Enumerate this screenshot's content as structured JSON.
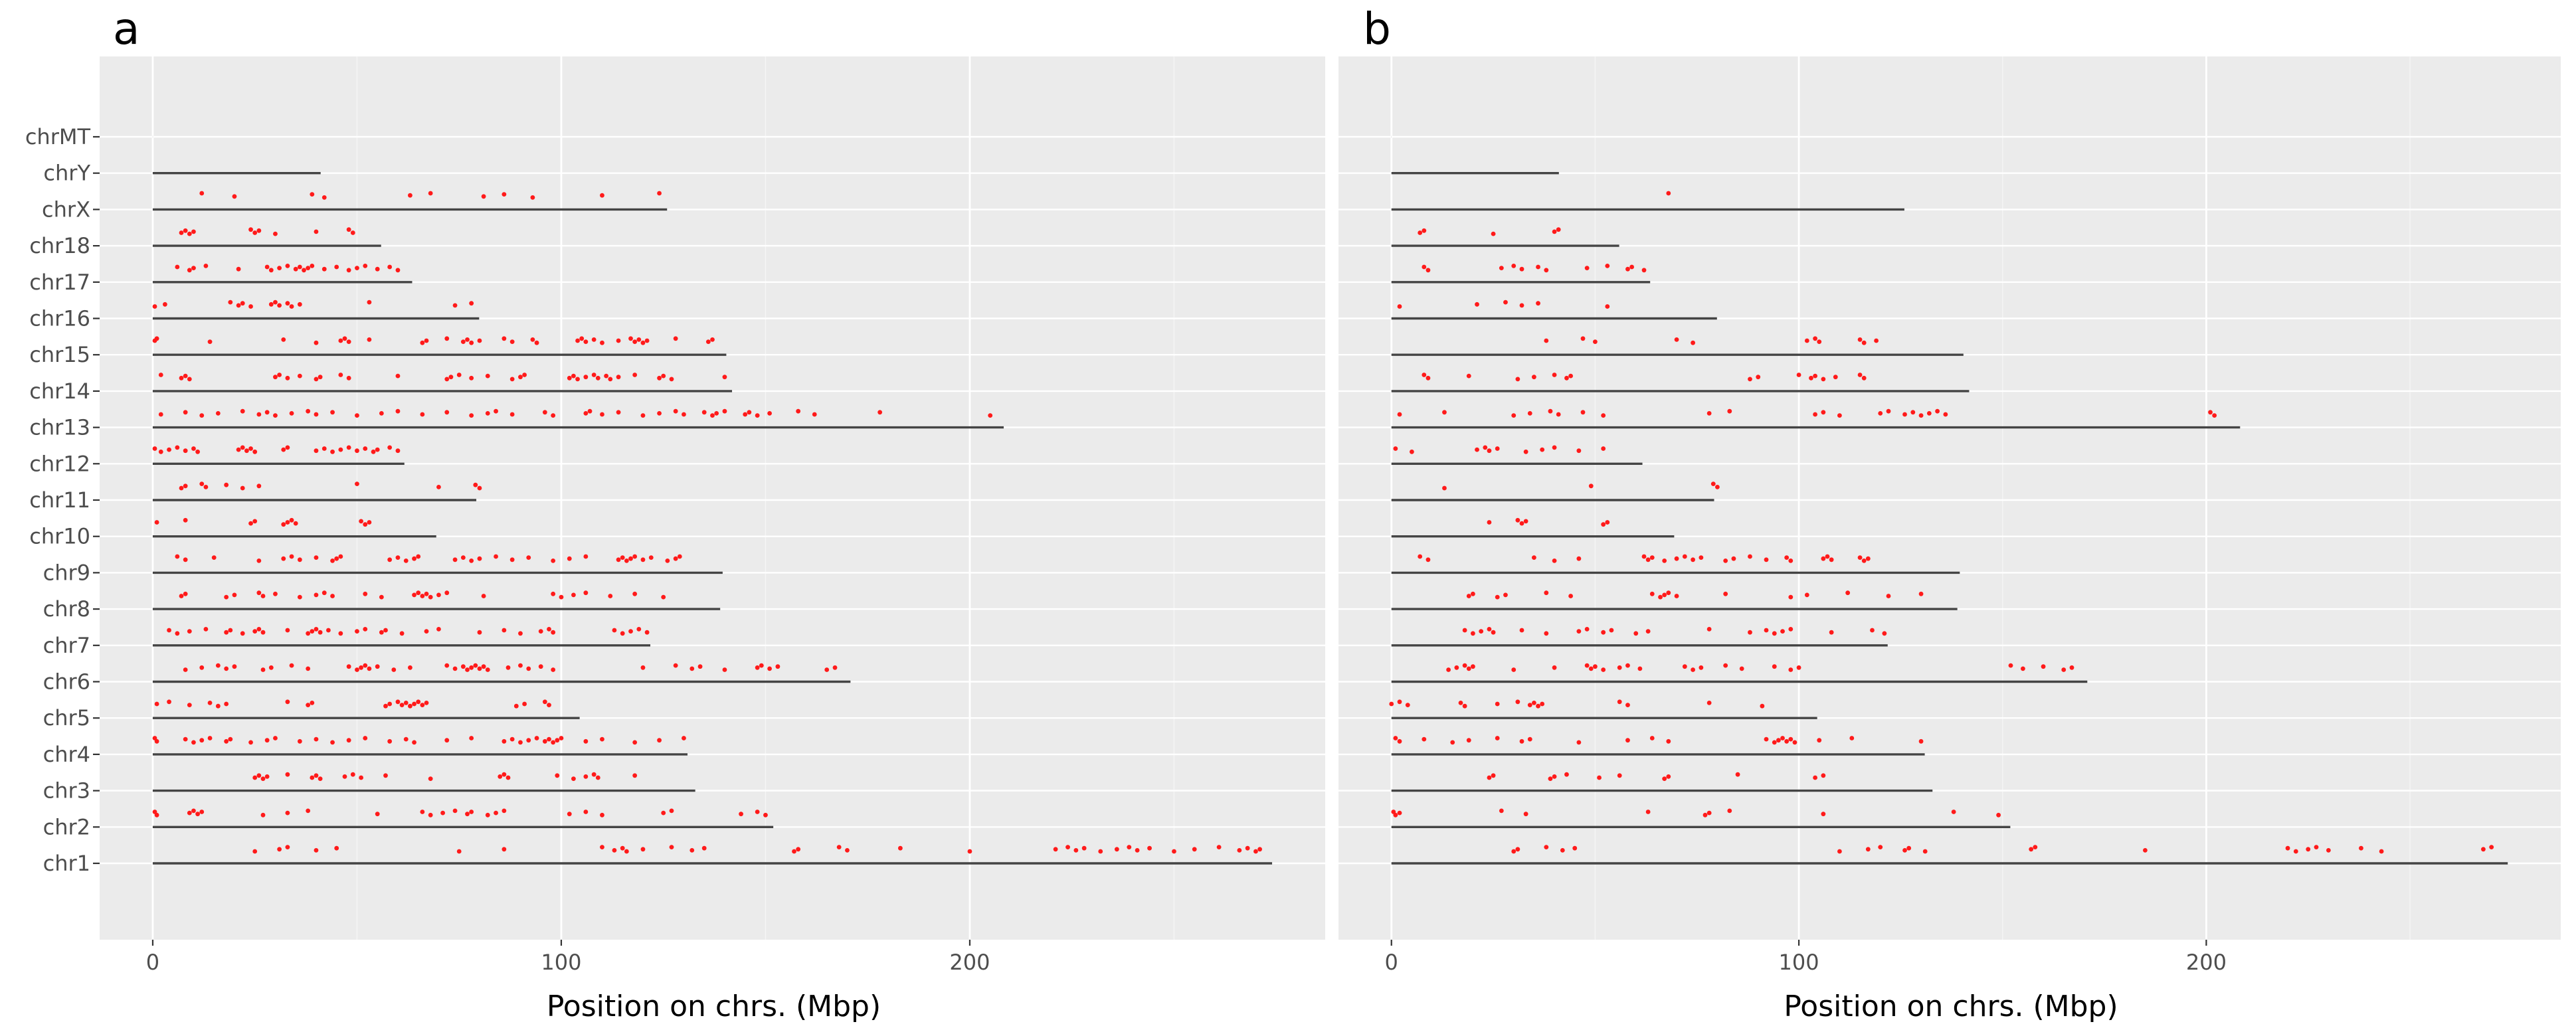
{
  "chart_data": [
    {
      "type": "scatter",
      "panel_label": "a",
      "xlabel": "Position on chrs. (Mbp)",
      "xlim": [
        -13,
        287
      ],
      "xticks": [
        0,
        100,
        200
      ],
      "xtick_labels": [
        "0",
        "100",
        "200"
      ],
      "categories": [
        "chr1",
        "chr2",
        "chr3",
        "chr4",
        "chr5",
        "chr6",
        "chr7",
        "chr8",
        "chr9",
        "chr10",
        "chr11",
        "chr12",
        "chr13",
        "chr14",
        "chr15",
        "chr16",
        "chr17",
        "chr18",
        "chrX",
        "chrY",
        "chrMT"
      ],
      "chromosome_lengths": [
        274,
        151.9,
        132.8,
        130.9,
        104.5,
        170.8,
        121.8,
        138.9,
        139.5,
        69.4,
        79.2,
        61.6,
        208.3,
        141.8,
        140.4,
        79.9,
        63.5,
        55.9,
        125.9,
        41.1,
        0.016
      ],
      "series": [
        {
          "name": "chr1",
          "positions": [
            25,
            31,
            33,
            40,
            45,
            75,
            86,
            110,
            113,
            115,
            116,
            120,
            127,
            132,
            135,
            157,
            158,
            168,
            170,
            183,
            200,
            221,
            224,
            226,
            228,
            232,
            236,
            239,
            241,
            244,
            250,
            255,
            261,
            266,
            268,
            270,
            271
          ]
        },
        {
          "name": "chr2",
          "positions": [
            0.5,
            1,
            9,
            10,
            11,
            12,
            27,
            33,
            38,
            55,
            66,
            68,
            71,
            74,
            77,
            78,
            82,
            84,
            86,
            102,
            106,
            110,
            125,
            127,
            144,
            148,
            150
          ]
        },
        {
          "name": "chr3",
          "positions": [
            25,
            26,
            27,
            28,
            33,
            39,
            40,
            41,
            47,
            49,
            51,
            57,
            68,
            85,
            86,
            87,
            99,
            103,
            106,
            108,
            109,
            118
          ]
        },
        {
          "name": "chr4",
          "positions": [
            0.5,
            1,
            8,
            10,
            12,
            14,
            18,
            19,
            24,
            28,
            30,
            36,
            40,
            44,
            48,
            52,
            58,
            62,
            64,
            72,
            78,
            86,
            88,
            90,
            92,
            94,
            96,
            97,
            98,
            99,
            100,
            106,
            110,
            118,
            124,
            130
          ]
        },
        {
          "name": "chr5",
          "positions": [
            1,
            4,
            9,
            14,
            16,
            18,
            33,
            38,
            39,
            57,
            58,
            60,
            61,
            62,
            63,
            64,
            65,
            66,
            67,
            89,
            91,
            96,
            97
          ]
        },
        {
          "name": "chr6",
          "positions": [
            8,
            12,
            16,
            18,
            20,
            27,
            29,
            34,
            38,
            48,
            50,
            51,
            52,
            53,
            55,
            59,
            63,
            72,
            74,
            76,
            77,
            78,
            79,
            80,
            81,
            82,
            87,
            90,
            92,
            95,
            98,
            120,
            128,
            132,
            134,
            140,
            148,
            149,
            151,
            153,
            165,
            167
          ]
        },
        {
          "name": "chr7",
          "positions": [
            4,
            6,
            9,
            13,
            18,
            19,
            22,
            25,
            26,
            27,
            33,
            38,
            39,
            40,
            41,
            43,
            46,
            50,
            52,
            56,
            57,
            61,
            67,
            70,
            80,
            86,
            90,
            95,
            97,
            98,
            113,
            115,
            117,
            119,
            121
          ]
        },
        {
          "name": "chr8",
          "positions": [
            7,
            8,
            18,
            20,
            26,
            27,
            30,
            36,
            40,
            42,
            44,
            52,
            56,
            64,
            65,
            66,
            67,
            68,
            70,
            72,
            81,
            98,
            100,
            103,
            106,
            112,
            118,
            125
          ]
        },
        {
          "name": "chr9",
          "positions": [
            6,
            8,
            15,
            26,
            32,
            34,
            36,
            40,
            44,
            45,
            46,
            58,
            60,
            62,
            64,
            65,
            74,
            76,
            78,
            80,
            84,
            88,
            92,
            98,
            102,
            106,
            114,
            115,
            116,
            117,
            118,
            120,
            122,
            126,
            128,
            129
          ]
        },
        {
          "name": "chr10",
          "positions": [
            1,
            8,
            24,
            25,
            32,
            33,
            34,
            35,
            51,
            52,
            53
          ]
        },
        {
          "name": "chr11",
          "positions": [
            7,
            8,
            12,
            13,
            18,
            22,
            26,
            50,
            70,
            79,
            80
          ]
        },
        {
          "name": "chr12",
          "positions": [
            0.5,
            2,
            4,
            6,
            8,
            10,
            11,
            21,
            22,
            23,
            24,
            25,
            32,
            33,
            40,
            42,
            44,
            46,
            48,
            50,
            52,
            54,
            55,
            58,
            60
          ]
        },
        {
          "name": "chr13",
          "positions": [
            2,
            8,
            12,
            16,
            22,
            26,
            28,
            30,
            34,
            38,
            40,
            44,
            50,
            56,
            60,
            66,
            72,
            78,
            82,
            84,
            88,
            96,
            98,
            106,
            107,
            110,
            114,
            120,
            124,
            128,
            130,
            135,
            137,
            138,
            140,
            145,
            146,
            148,
            151,
            158,
            162,
            178,
            205
          ]
        },
        {
          "name": "chr14",
          "positions": [
            2,
            7,
            8,
            9,
            30,
            31,
            33,
            36,
            40,
            41,
            46,
            48,
            60,
            72,
            73,
            75,
            78,
            82,
            88,
            90,
            91,
            102,
            103,
            104,
            106,
            108,
            109,
            111,
            112,
            114,
            118,
            124,
            125,
            127,
            140
          ]
        },
        {
          "name": "chr15",
          "positions": [
            0.5,
            1,
            14,
            32,
            40,
            46,
            47,
            48,
            53,
            66,
            67,
            72,
            76,
            77,
            78,
            80,
            86,
            88,
            93,
            94,
            104,
            105,
            106,
            108,
            110,
            114,
            117,
            118,
            119,
            120,
            121,
            128,
            136,
            137
          ]
        },
        {
          "name": "chr16",
          "positions": [
            0.5,
            3,
            19,
            21,
            22,
            24,
            29,
            30,
            31,
            33,
            34,
            36,
            53,
            74,
            78
          ]
        },
        {
          "name": "chr17",
          "positions": [
            6,
            9,
            10,
            13,
            21,
            28,
            29,
            31,
            33,
            35,
            36,
            37,
            38,
            39,
            42,
            45,
            48,
            50,
            52,
            55,
            58,
            60
          ]
        },
        {
          "name": "chr18",
          "positions": [
            7,
            8,
            9,
            10,
            24,
            25,
            26,
            30,
            40,
            48,
            49
          ]
        },
        {
          "name": "chrX",
          "positions": [
            12,
            20,
            39,
            42,
            63,
            68,
            81,
            86,
            93,
            110,
            124
          ]
        },
        {
          "name": "chrY",
          "positions": []
        },
        {
          "name": "chrMT",
          "positions": []
        }
      ]
    },
    {
      "type": "scatter",
      "panel_label": "b",
      "xlabel": "Position on chrs. (Mbp)",
      "xlim": [
        -13,
        287
      ],
      "xticks": [
        0,
        100,
        200
      ],
      "xtick_labels": [
        "0",
        "100",
        "200"
      ],
      "categories": [
        "chr1",
        "chr2",
        "chr3",
        "chr4",
        "chr5",
        "chr6",
        "chr7",
        "chr8",
        "chr9",
        "chr10",
        "chr11",
        "chr12",
        "chr13",
        "chr14",
        "chr15",
        "chr16",
        "chr17",
        "chr18",
        "chrX",
        "chrY",
        "chrMT"
      ],
      "chromosome_lengths": [
        274,
        151.9,
        132.8,
        130.9,
        104.5,
        170.8,
        121.8,
        138.9,
        139.5,
        69.4,
        79.2,
        61.6,
        208.3,
        141.8,
        140.4,
        79.9,
        63.5,
        55.9,
        125.9,
        41.1,
        0.016
      ],
      "series": [
        {
          "name": "chr1",
          "positions": [
            30,
            31,
            38,
            42,
            45,
            110,
            117,
            120,
            126,
            127,
            131,
            157,
            158,
            185,
            220,
            222,
            225,
            227,
            230,
            238,
            243,
            268,
            270
          ]
        },
        {
          "name": "chr2",
          "positions": [
            0.5,
            1,
            2,
            27,
            33,
            63,
            77,
            78,
            83,
            106,
            138,
            149
          ]
        },
        {
          "name": "chr3",
          "positions": [
            24,
            25,
            39,
            40,
            43,
            51,
            56,
            67,
            68,
            85,
            104,
            106
          ]
        },
        {
          "name": "chr4",
          "positions": [
            1,
            2,
            8,
            15,
            19,
            26,
            32,
            34,
            46,
            58,
            64,
            68,
            92,
            94,
            95,
            96,
            97,
            98,
            99,
            105,
            113,
            130
          ]
        },
        {
          "name": "chr5",
          "positions": [
            0,
            2,
            4,
            17,
            18,
            26,
            31,
            34,
            35,
            36,
            37,
            56,
            58,
            78,
            91
          ]
        },
        {
          "name": "chr6",
          "positions": [
            14,
            16,
            18,
            19,
            20,
            30,
            40,
            48,
            49,
            50,
            52,
            56,
            58,
            61,
            72,
            74,
            76,
            82,
            86,
            94,
            98,
            100,
            152,
            155,
            160,
            165,
            167
          ]
        },
        {
          "name": "chr7",
          "positions": [
            18,
            20,
            22,
            24,
            25,
            32,
            38,
            46,
            48,
            52,
            54,
            60,
            63,
            78,
            88,
            92,
            94,
            96,
            98,
            108,
            118,
            121
          ]
        },
        {
          "name": "chr8",
          "positions": [
            19,
            20,
            26,
            28,
            38,
            44,
            64,
            66,
            67,
            68,
            70,
            82,
            98,
            102,
            112,
            122,
            130
          ]
        },
        {
          "name": "chr9",
          "positions": [
            7,
            9,
            35,
            40,
            46,
            62,
            63,
            64,
            67,
            70,
            72,
            74,
            76,
            82,
            84,
            88,
            92,
            97,
            98,
            106,
            107,
            108,
            115,
            116,
            117
          ]
        },
        {
          "name": "chr10",
          "positions": [
            24,
            31,
            32,
            33,
            52,
            53
          ]
        },
        {
          "name": "chr11",
          "positions": [
            13,
            49,
            79,
            80
          ]
        },
        {
          "name": "chr12",
          "positions": [
            1,
            5,
            21,
            23,
            24,
            26,
            33,
            37,
            40,
            46,
            52
          ]
        },
        {
          "name": "chr13",
          "positions": [
            2,
            13,
            30,
            34,
            39,
            41,
            47,
            52,
            78,
            83,
            104,
            106,
            110,
            120,
            122,
            126,
            128,
            130,
            132,
            134,
            136,
            201,
            202
          ]
        },
        {
          "name": "chr14",
          "positions": [
            8,
            9,
            19,
            31,
            35,
            40,
            43,
            44,
            88,
            90,
            100,
            103,
            104,
            106,
            109,
            115,
            116
          ]
        },
        {
          "name": "chr15",
          "positions": [
            38,
            47,
            50,
            70,
            74,
            102,
            104,
            105,
            115,
            116,
            119
          ]
        },
        {
          "name": "chr16",
          "positions": [
            2,
            21,
            28,
            32,
            36,
            53
          ]
        },
        {
          "name": "chr17",
          "positions": [
            8,
            9,
            27,
            30,
            32,
            36,
            38,
            48,
            53,
            58,
            59,
            62
          ]
        },
        {
          "name": "chr18",
          "positions": [
            7,
            8,
            25,
            40,
            41
          ]
        },
        {
          "name": "chrX",
          "positions": [
            68
          ]
        },
        {
          "name": "chrY",
          "positions": []
        },
        {
          "name": "chrMT",
          "positions": []
        }
      ]
    }
  ]
}
